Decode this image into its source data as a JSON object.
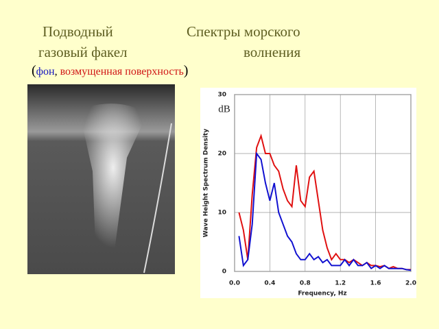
{
  "slide": {
    "left_title": [
      "Подводный",
      "газовый факел"
    ],
    "right_title": [
      "Спектры морского",
      "волнения"
    ],
    "caption": [
      "(",
      "фон",
      ", ",
      "возмущенная поверхность",
      ")"
    ]
  },
  "chart_data": {
    "type": "line",
    "annotation": "dB",
    "x_label": "Frequency, Hz",
    "y_label": "Wave Height Spectrum Density",
    "x": [
      0.05,
      0.1,
      0.15,
      0.2,
      0.25,
      0.3,
      0.35,
      0.4,
      0.45,
      0.5,
      0.55,
      0.6,
      0.65,
      0.7,
      0.75,
      0.8,
      0.85,
      0.9,
      0.95,
      1.0,
      1.05,
      1.1,
      1.15,
      1.2,
      1.25,
      1.3,
      1.35,
      1.4,
      1.45,
      1.5,
      1.55,
      1.6,
      1.65,
      1.7,
      1.75,
      1.8,
      1.85,
      1.9,
      1.95,
      2.0
    ],
    "series": [
      {
        "color": "#e01010",
        "values": [
          10,
          7,
          2,
          13,
          21,
          23,
          20,
          20,
          18,
          17,
          14,
          12,
          11,
          18,
          12,
          11,
          16,
          17,
          12,
          7,
          4,
          2,
          3,
          2,
          2,
          1.5,
          2,
          1.5,
          1,
          1.5,
          1,
          1,
          0.8,
          1,
          0.5,
          0.8,
          0.5,
          0.5,
          0.3,
          0.3
        ]
      },
      {
        "color": "#1010d0",
        "values": [
          6,
          1,
          2,
          8,
          20,
          19,
          15,
          12,
          15,
          10,
          8,
          6,
          5,
          3,
          2,
          2,
          3,
          2,
          2.5,
          1.5,
          2,
          1,
          1,
          1,
          2,
          1,
          2,
          1,
          1,
          1.5,
          0.5,
          1,
          0.5,
          1,
          0.5,
          0.5,
          0.5,
          0.5,
          0.3,
          0.2
        ]
      }
    ],
    "xlim": [
      0,
      2.0
    ],
    "ylim": [
      0,
      30
    ],
    "xticks": [
      {
        "value": 0,
        "label": "0.0"
      },
      0.4,
      0.8,
      1.2,
      1.6,
      {
        "value": 2,
        "label": "2.0"
      }
    ],
    "yticks": [
      0,
      10,
      20,
      30
    ],
    "grid": true
  }
}
